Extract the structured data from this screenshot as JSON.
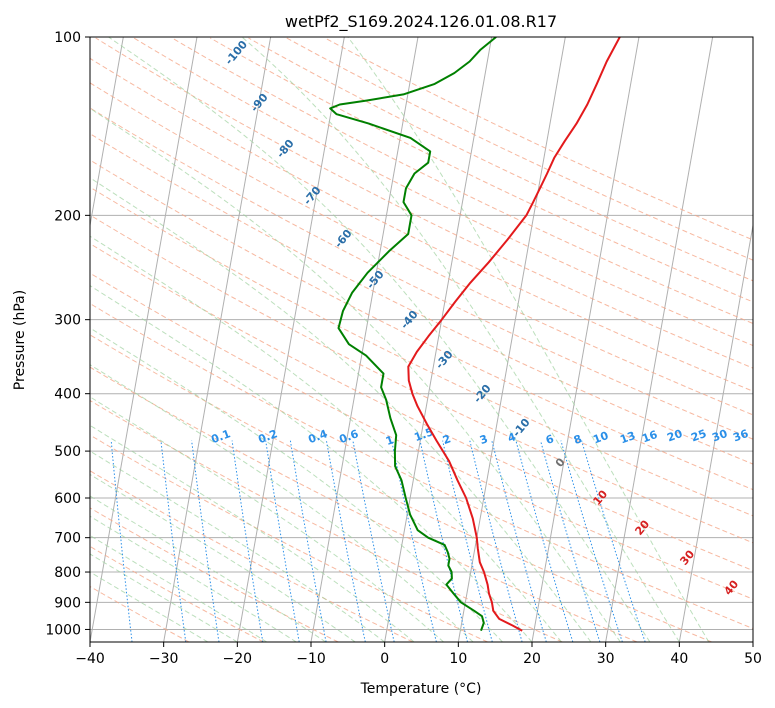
{
  "chart_data": {
    "type": "line",
    "title": "wetPf2_S169.2024.126.01.08.R17",
    "xlabel": "Temperature (°C)",
    "ylabel": "Pressure (hPa)",
    "xlim": [
      -40,
      50
    ],
    "ylim": [
      1050,
      100
    ],
    "y_scale": "log",
    "grid": true,
    "x_ticks": [
      -40,
      -30,
      -20,
      -10,
      0,
      10,
      20,
      30,
      40,
      50
    ],
    "y_ticks": [
      100,
      200,
      300,
      400,
      500,
      600,
      700,
      800,
      900,
      1000
    ],
    "series": [
      {
        "color": "#e31a1c",
        "pressure": [
          1005,
          985,
          960,
          930,
          900,
          870,
          840,
          800,
          770,
          730,
          700,
          650,
          600,
          560,
          520,
          480,
          450,
          420,
          400,
          380,
          360,
          340,
          320,
          300,
          280,
          260,
          240,
          220,
          200,
          190,
          180,
          170,
          160,
          150,
          140,
          130,
          120,
          110,
          100
        ],
        "values": [
          18.4,
          17.0,
          15.0,
          14.0,
          13.6,
          13.0,
          12.6,
          11.8,
          11.0,
          10.4,
          10.0,
          9.0,
          7.6,
          6.0,
          4.4,
          2.2,
          0.5,
          -1.2,
          -2.2,
          -3.0,
          -3.4,
          -2.6,
          -1.4,
          0.0,
          1.4,
          3.0,
          5.0,
          7.0,
          9.0,
          9.6,
          10.2,
          10.8,
          11.4,
          12.4,
          13.6,
          14.6,
          15.4,
          16.2,
          17.4
        ]
      },
      {
        "color": "#008000",
        "pressure": [
          1005,
          975,
          950,
          930,
          900,
          870,
          840,
          820,
          800,
          780,
          760,
          740,
          720,
          700,
          680,
          640,
          600,
          560,
          530,
          500,
          470,
          440,
          410,
          390,
          370,
          345,
          330,
          310,
          290,
          270,
          250,
          230,
          215,
          200,
          190,
          180,
          170,
          163,
          156,
          148,
          140,
          135,
          132,
          130,
          128,
          125,
          120,
          115,
          110,
          105,
          100
        ],
        "values": [
          12.8,
          13.0,
          12.6,
          11.4,
          9.4,
          8.2,
          7.0,
          7.6,
          7.4,
          6.8,
          6.8,
          6.4,
          5.8,
          3.4,
          1.8,
          0.4,
          -0.6,
          -1.6,
          -2.8,
          -3.2,
          -3.4,
          -4.6,
          -5.6,
          -6.6,
          -6.6,
          -9.4,
          -12.0,
          -13.8,
          -13.6,
          -12.8,
          -11.2,
          -8.8,
          -6.6,
          -6.6,
          -8.0,
          -8.0,
          -7.2,
          -5.6,
          -5.6,
          -8.6,
          -14.6,
          -19.2,
          -20.2,
          -19.0,
          -15.4,
          -10.6,
          -6.6,
          -4.2,
          -2.4,
          -1.2,
          0.6
        ]
      }
    ],
    "annotations": {
      "dry_adiabat_labels": [
        "10",
        "20",
        "30",
        "40"
      ],
      "moist_adiabat_labels": [
        "-100",
        "-90",
        "-80",
        "-70",
        "-60",
        "-50",
        "-40",
        "-30",
        "-20",
        "-10",
        "0"
      ],
      "mixing_ratio_labels": [
        "0.1",
        "0.2",
        "0.4",
        "0.6",
        "1",
        "1.5",
        "2",
        "3",
        "4",
        "6",
        "8",
        "10",
        "13",
        "16",
        "20",
        "25",
        "30",
        "36"
      ]
    }
  }
}
